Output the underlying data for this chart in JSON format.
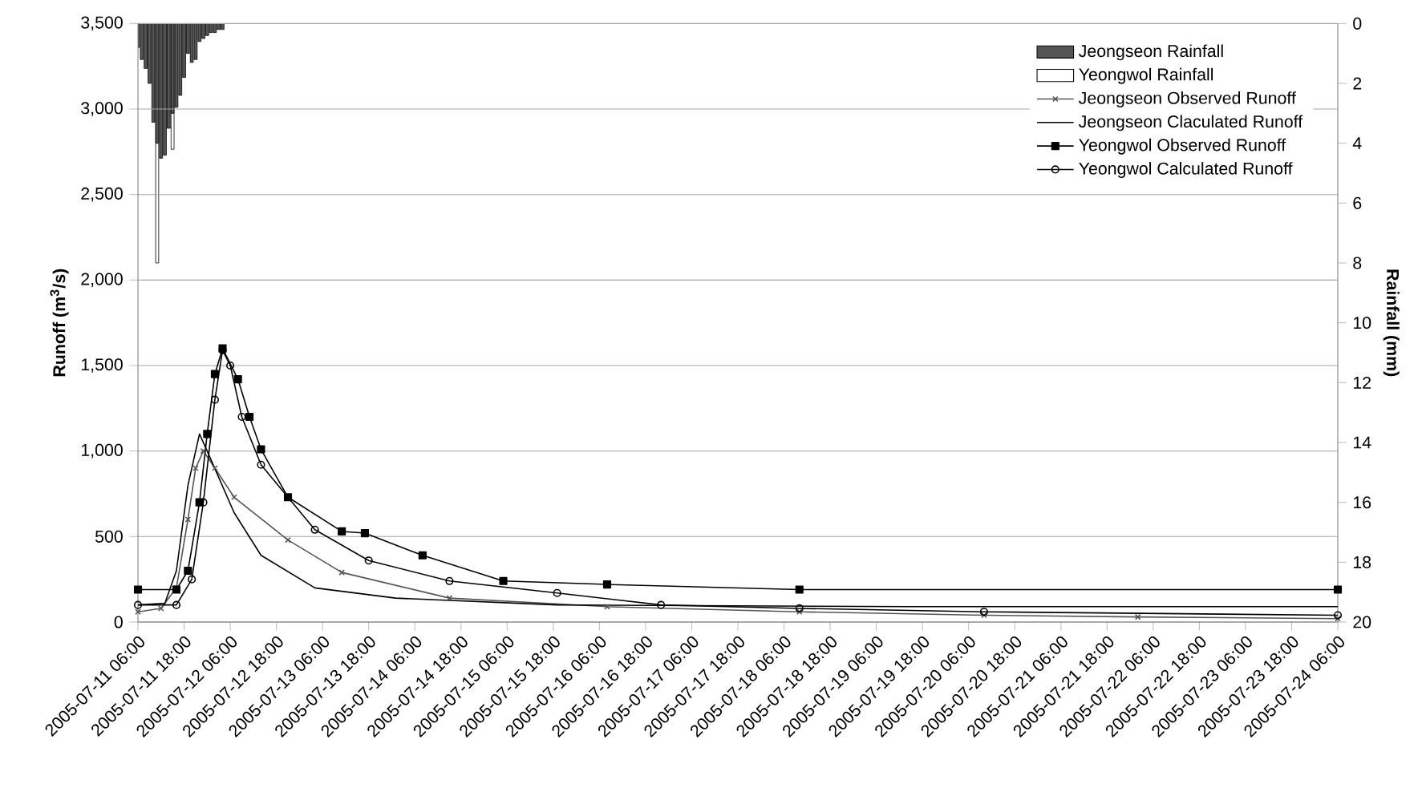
{
  "chart_data": {
    "type": "line",
    "ylabel": "Runoff (m$^{3}$/s)",
    "y2label": "Rainfall (mm)",
    "xlim": [
      "2005-07-11T06:00",
      "2005-07-24T06:00"
    ],
    "xticks": [
      {
        "value": "2005-07-11T06:00",
        "label": "2005-07-11 06:00"
      },
      {
        "value": "2005-07-11T18:00",
        "label": "2005-07-11 18:00"
      },
      {
        "value": "2005-07-12T06:00",
        "label": "2005-07-12 06:00"
      },
      {
        "value": "2005-07-12T18:00",
        "label": "2005-07-12 18:00"
      },
      {
        "value": "2005-07-13T06:00",
        "label": "2005-07-13 06:00"
      },
      {
        "value": "2005-07-13T18:00",
        "label": "2005-07-13 18:00"
      },
      {
        "value": "2005-07-14T06:00",
        "label": "2005-07-14 06:00"
      },
      {
        "value": "2005-07-14T18:00",
        "label": "2005-07-14 18:00"
      },
      {
        "value": "2005-07-15T06:00",
        "label": "2005-07-15 06:00"
      },
      {
        "value": "2005-07-15T18:00",
        "label": "2005-07-15 18:00"
      },
      {
        "value": "2005-07-16T06:00",
        "label": "2005-07-16 06:00"
      },
      {
        "value": "2005-07-16T18:00",
        "label": "2005-07-16 18:00"
      },
      {
        "value": "2005-07-17T06:00",
        "label": "2005-07-17 06:00"
      },
      {
        "value": "2005-07-17T18:00",
        "label": "2005-07-17 18:00"
      },
      {
        "value": "2005-07-18T06:00",
        "label": "2005-07-18 06:00"
      },
      {
        "value": "2005-07-18T18:00",
        "label": "2005-07-18 18:00"
      },
      {
        "value": "2005-07-19T06:00",
        "label": "2005-07-19 06:00"
      },
      {
        "value": "2005-07-19T18:00",
        "label": "2005-07-19 18:00"
      },
      {
        "value": "2005-07-20T06:00",
        "label": "2005-07-20 06:00"
      },
      {
        "value": "2005-07-20T18:00",
        "label": "2005-07-20 18:00"
      },
      {
        "value": "2005-07-21T06:00",
        "label": "2005-07-21 06:00"
      },
      {
        "value": "2005-07-21T18:00",
        "label": "2005-07-21 18:00"
      },
      {
        "value": "2005-07-22T06:00",
        "label": "2005-07-22 06:00"
      },
      {
        "value": "2005-07-22T18:00",
        "label": "2005-07-22 18:00"
      },
      {
        "value": "2005-07-23T06:00",
        "label": "2005-07-23 06:00"
      },
      {
        "value": "2005-07-23T18:00",
        "label": "2005-07-23 18:00"
      },
      {
        "value": "2005-07-24T06:00",
        "label": "2005-07-24 06:00"
      }
    ],
    "ylim": [
      0,
      3500
    ],
    "yticks": [
      0,
      500,
      {
        "value": 1000,
        "label": "1,000"
      },
      {
        "value": 1500,
        "label": "1,500"
      },
      {
        "value": 2000,
        "label": "2,000"
      },
      {
        "value": 2500,
        "label": "2,500"
      },
      {
        "value": 3000,
        "label": "3,000"
      },
      {
        "value": 3500,
        "label": "3,500"
      }
    ],
    "y2lim": [
      20,
      0
    ],
    "y2ticks": [
      0,
      2,
      4,
      6,
      8,
      10,
      12,
      14,
      16,
      18,
      20
    ],
    "grid": "y",
    "legend": "top right",
    "series": [
      {
        "name": "Jeongseon Rainfall",
        "type": "bar",
        "axis": "y2",
        "color": "#555555",
        "x": [
          "2005-07-11T06:00",
          "2005-07-11T07:00",
          "2005-07-11T08:00",
          "2005-07-11T09:00",
          "2005-07-11T10:00",
          "2005-07-11T11:00",
          "2005-07-11T12:00",
          "2005-07-11T13:00",
          "2005-07-11T14:00",
          "2005-07-11T15:00",
          "2005-07-11T16:00",
          "2005-07-11T17:00",
          "2005-07-11T18:00",
          "2005-07-11T19:00",
          "2005-07-11T20:00",
          "2005-07-11T21:00",
          "2005-07-11T22:00",
          "2005-07-11T23:00",
          "2005-07-12T00:00",
          "2005-07-12T01:00",
          "2005-07-12T02:00",
          "2005-07-12T03:00",
          "2005-07-12T04:00"
        ],
        "values": [
          0.8,
          1.2,
          1.5,
          2.0,
          3.3,
          4.0,
          4.5,
          4.4,
          3.5,
          3.0,
          2.8,
          2.4,
          1.8,
          1.0,
          1.3,
          1.2,
          0.6,
          0.5,
          0.4,
          0.3,
          0.3,
          0.2,
          0.2
        ]
      },
      {
        "name": "Yeongwol Rainfall",
        "type": "bar",
        "axis": "y2",
        "color": "#ffffff",
        "x": [
          "2005-07-11T11:00",
          "2005-07-11T15:00"
        ],
        "values": [
          8.0,
          4.2
        ]
      },
      {
        "name": "Jeongseon Observed Runoff",
        "marker": "cross",
        "color": "#555555",
        "x": [
          "2005-07-11T06:00",
          "2005-07-11T12:00",
          "2005-07-11T16:00",
          "2005-07-11T19:00",
          "2005-07-11T21:00",
          "2005-07-11T23:00",
          "2005-07-12T02:00",
          "2005-07-12T07:00",
          "2005-07-12T21:00",
          "2005-07-13T11:00",
          "2005-07-14T15:00",
          "2005-07-16T08:00",
          "2005-07-18T10:00",
          "2005-07-20T10:00",
          "2005-07-22T02:00",
          "2005-07-24T06:00"
        ],
        "values": [
          60,
          80,
          200,
          600,
          900,
          1000,
          900,
          730,
          480,
          290,
          140,
          90,
          60,
          40,
          30,
          20
        ]
      },
      {
        "name": "Jeongseon Claculated Runoff",
        "marker": "none",
        "color": "#000000",
        "x": [
          "2005-07-11T06:00",
          "2005-07-11T13:00",
          "2005-07-11T16:00",
          "2005-07-11T19:00",
          "2005-07-11T22:00",
          "2005-07-12T00:00",
          "2005-07-12T07:00",
          "2005-07-12T14:00",
          "2005-07-13T04:00",
          "2005-07-14T01:00",
          "2005-07-15T19:00",
          "2005-07-19T14:00",
          "2005-07-24T06:00"
        ],
        "values": [
          100,
          110,
          300,
          800,
          1100,
          1000,
          640,
          390,
          200,
          140,
          100,
          90,
          90
        ]
      },
      {
        "name": "Yeongwol Observed Runoff",
        "marker": "square",
        "color": "#000000",
        "x": [
          "2005-07-11T06:00",
          "2005-07-11T16:00",
          "2005-07-11T19:00",
          "2005-07-11T22:00",
          "2005-07-12T00:00",
          "2005-07-12T02:00",
          "2005-07-12T04:00",
          "2005-07-12T08:00",
          "2005-07-12T11:00",
          "2005-07-12T14:00",
          "2005-07-12T21:00",
          "2005-07-13T11:00",
          "2005-07-13T17:00",
          "2005-07-14T08:00",
          "2005-07-15T05:00",
          "2005-07-16T08:00",
          "2005-07-18T10:00",
          "2005-07-24T06:00"
        ],
        "values": [
          190,
          190,
          300,
          700,
          1100,
          1450,
          1600,
          1420,
          1200,
          1010,
          730,
          530,
          520,
          390,
          240,
          220,
          190,
          190
        ]
      },
      {
        "name": "Yeongwol Calculated Runoff",
        "marker": "circle",
        "color": "#000000",
        "x": [
          "2005-07-11T06:00",
          "2005-07-11T16:00",
          "2005-07-11T20:00",
          "2005-07-11T23:00",
          "2005-07-12T02:00",
          "2005-07-12T04:00",
          "2005-07-12T06:00",
          "2005-07-12T09:00",
          "2005-07-12T14:00",
          "2005-07-13T04:00",
          "2005-07-13T18:00",
          "2005-07-14T15:00",
          "2005-07-15T19:00",
          "2005-07-16T22:00",
          "2005-07-18T10:00",
          "2005-07-20T10:00",
          "2005-07-24T06:00"
        ],
        "values": [
          100,
          100,
          250,
          700,
          1300,
          1590,
          1500,
          1200,
          920,
          540,
          360,
          240,
          170,
          100,
          80,
          60,
          40
        ]
      }
    ]
  }
}
